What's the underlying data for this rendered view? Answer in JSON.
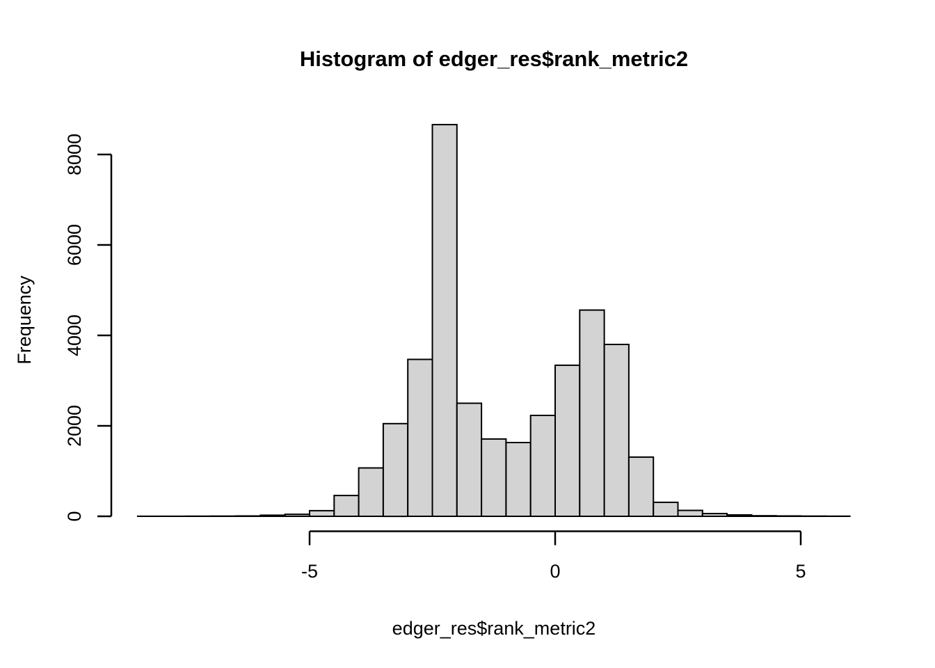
{
  "chart_data": {
    "type": "bar",
    "subtype": "histogram",
    "title": "Histogram of edger_res$rank_metric2",
    "xlabel": "edger_res$rank_metric2",
    "ylabel": "Frequency",
    "bin_width": 0.5,
    "bin_edges": [
      -8.5,
      -8.0,
      -7.5,
      -7.0,
      -6.5,
      -6.0,
      -5.5,
      -5.0,
      -4.5,
      -4.0,
      -3.5,
      -3.0,
      -2.5,
      -2.0,
      -1.5,
      -1.0,
      -0.5,
      0.0,
      0.5,
      1.0,
      1.5,
      2.0,
      2.5,
      3.0,
      3.5,
      4.0,
      4.5,
      5.0,
      5.5,
      6.0
    ],
    "counts": [
      2,
      2,
      3,
      5,
      8,
      25,
      45,
      125,
      460,
      1070,
      2050,
      3470,
      8660,
      2500,
      1710,
      1630,
      2230,
      3340,
      4560,
      3800,
      1310,
      310,
      130,
      60,
      30,
      12,
      8,
      5,
      3
    ],
    "x_ticks": [
      -5,
      0,
      5
    ],
    "x_tick_labels": [
      "-5",
      "0",
      "5"
    ],
    "y_ticks": [
      0,
      2000,
      4000,
      6000,
      8000
    ],
    "y_tick_labels": [
      "0",
      "2000",
      "4000",
      "6000",
      "8000"
    ],
    "xlim": [
      -8.5,
      6.0
    ],
    "ylim": [
      0,
      8660
    ],
    "grid": "off",
    "legend": "none",
    "bar_fill": "#d3d3d3",
    "bar_stroke": "#000000",
    "axis_color": "#000000",
    "background": "#ffffff"
  }
}
